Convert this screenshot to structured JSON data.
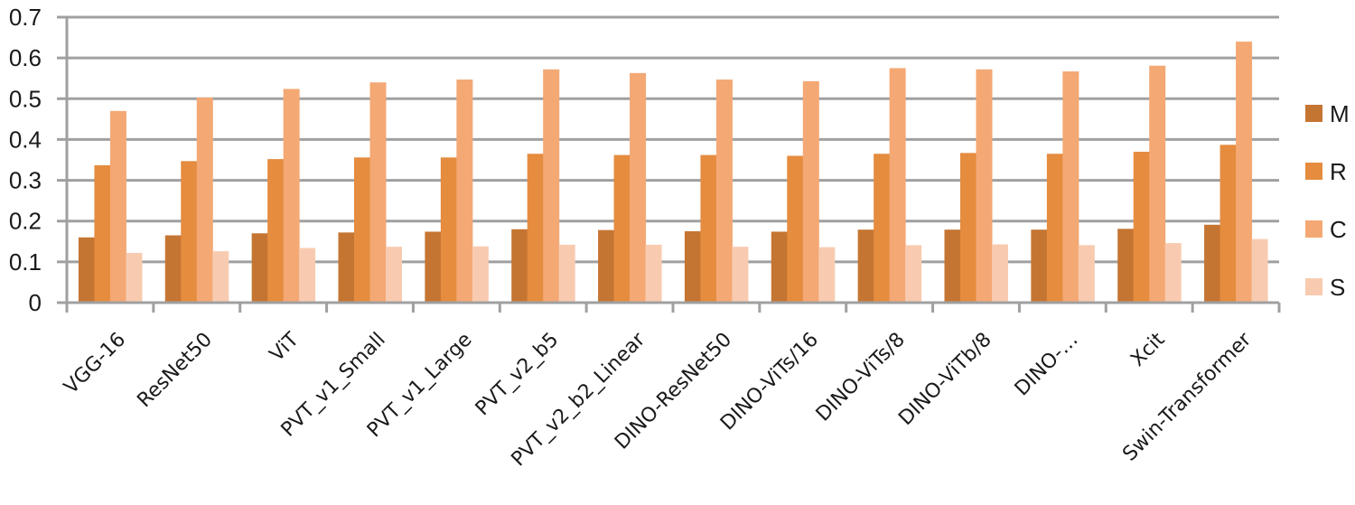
{
  "chart_data": {
    "type": "bar",
    "title": "",
    "xlabel": "",
    "ylabel": "",
    "ylim": [
      0,
      0.7
    ],
    "yticks": [
      "0",
      "0.1",
      "0.2",
      "0.3",
      "0.4",
      "0.5",
      "0.6",
      "0.7"
    ],
    "grid": true,
    "legend_position": "right",
    "categories": [
      "VGG-16",
      "ResNet50",
      "ViT",
      "PVT_v1_Small",
      "PVT_v1_Large",
      "PVT_v2_b5",
      "PVT_v2_b2_Linear",
      "DINO-ResNet50",
      "DINO-ViTs/16",
      "DINO-ViTs/8",
      "DINO-ViTb/8",
      "DINO-…",
      "Xcit",
      "Swin-Transformer"
    ],
    "series": [
      {
        "name": "M",
        "color": "#c57532",
        "values": [
          0.16,
          0.165,
          0.17,
          0.172,
          0.174,
          0.18,
          0.178,
          0.175,
          0.174,
          0.179,
          0.179,
          0.179,
          0.181,
          0.191
        ]
      },
      {
        "name": "R",
        "color": "#e58c3f",
        "values": [
          0.337,
          0.347,
          0.352,
          0.356,
          0.356,
          0.365,
          0.362,
          0.362,
          0.36,
          0.365,
          0.367,
          0.365,
          0.37,
          0.387
        ]
      },
      {
        "name": "C",
        "color": "#f4a874",
        "values": [
          0.47,
          0.503,
          0.524,
          0.54,
          0.547,
          0.572,
          0.563,
          0.547,
          0.543,
          0.575,
          0.572,
          0.567,
          0.581,
          0.64
        ]
      },
      {
        "name": "S",
        "color": "#f8cbb0",
        "values": [
          0.122,
          0.126,
          0.134,
          0.137,
          0.138,
          0.142,
          0.142,
          0.137,
          0.136,
          0.141,
          0.143,
          0.141,
          0.146,
          0.156
        ]
      }
    ]
  },
  "colors": {
    "grid": "#a0a0a0",
    "axis": "#a0a0a0",
    "text": "#1a1a1a"
  }
}
